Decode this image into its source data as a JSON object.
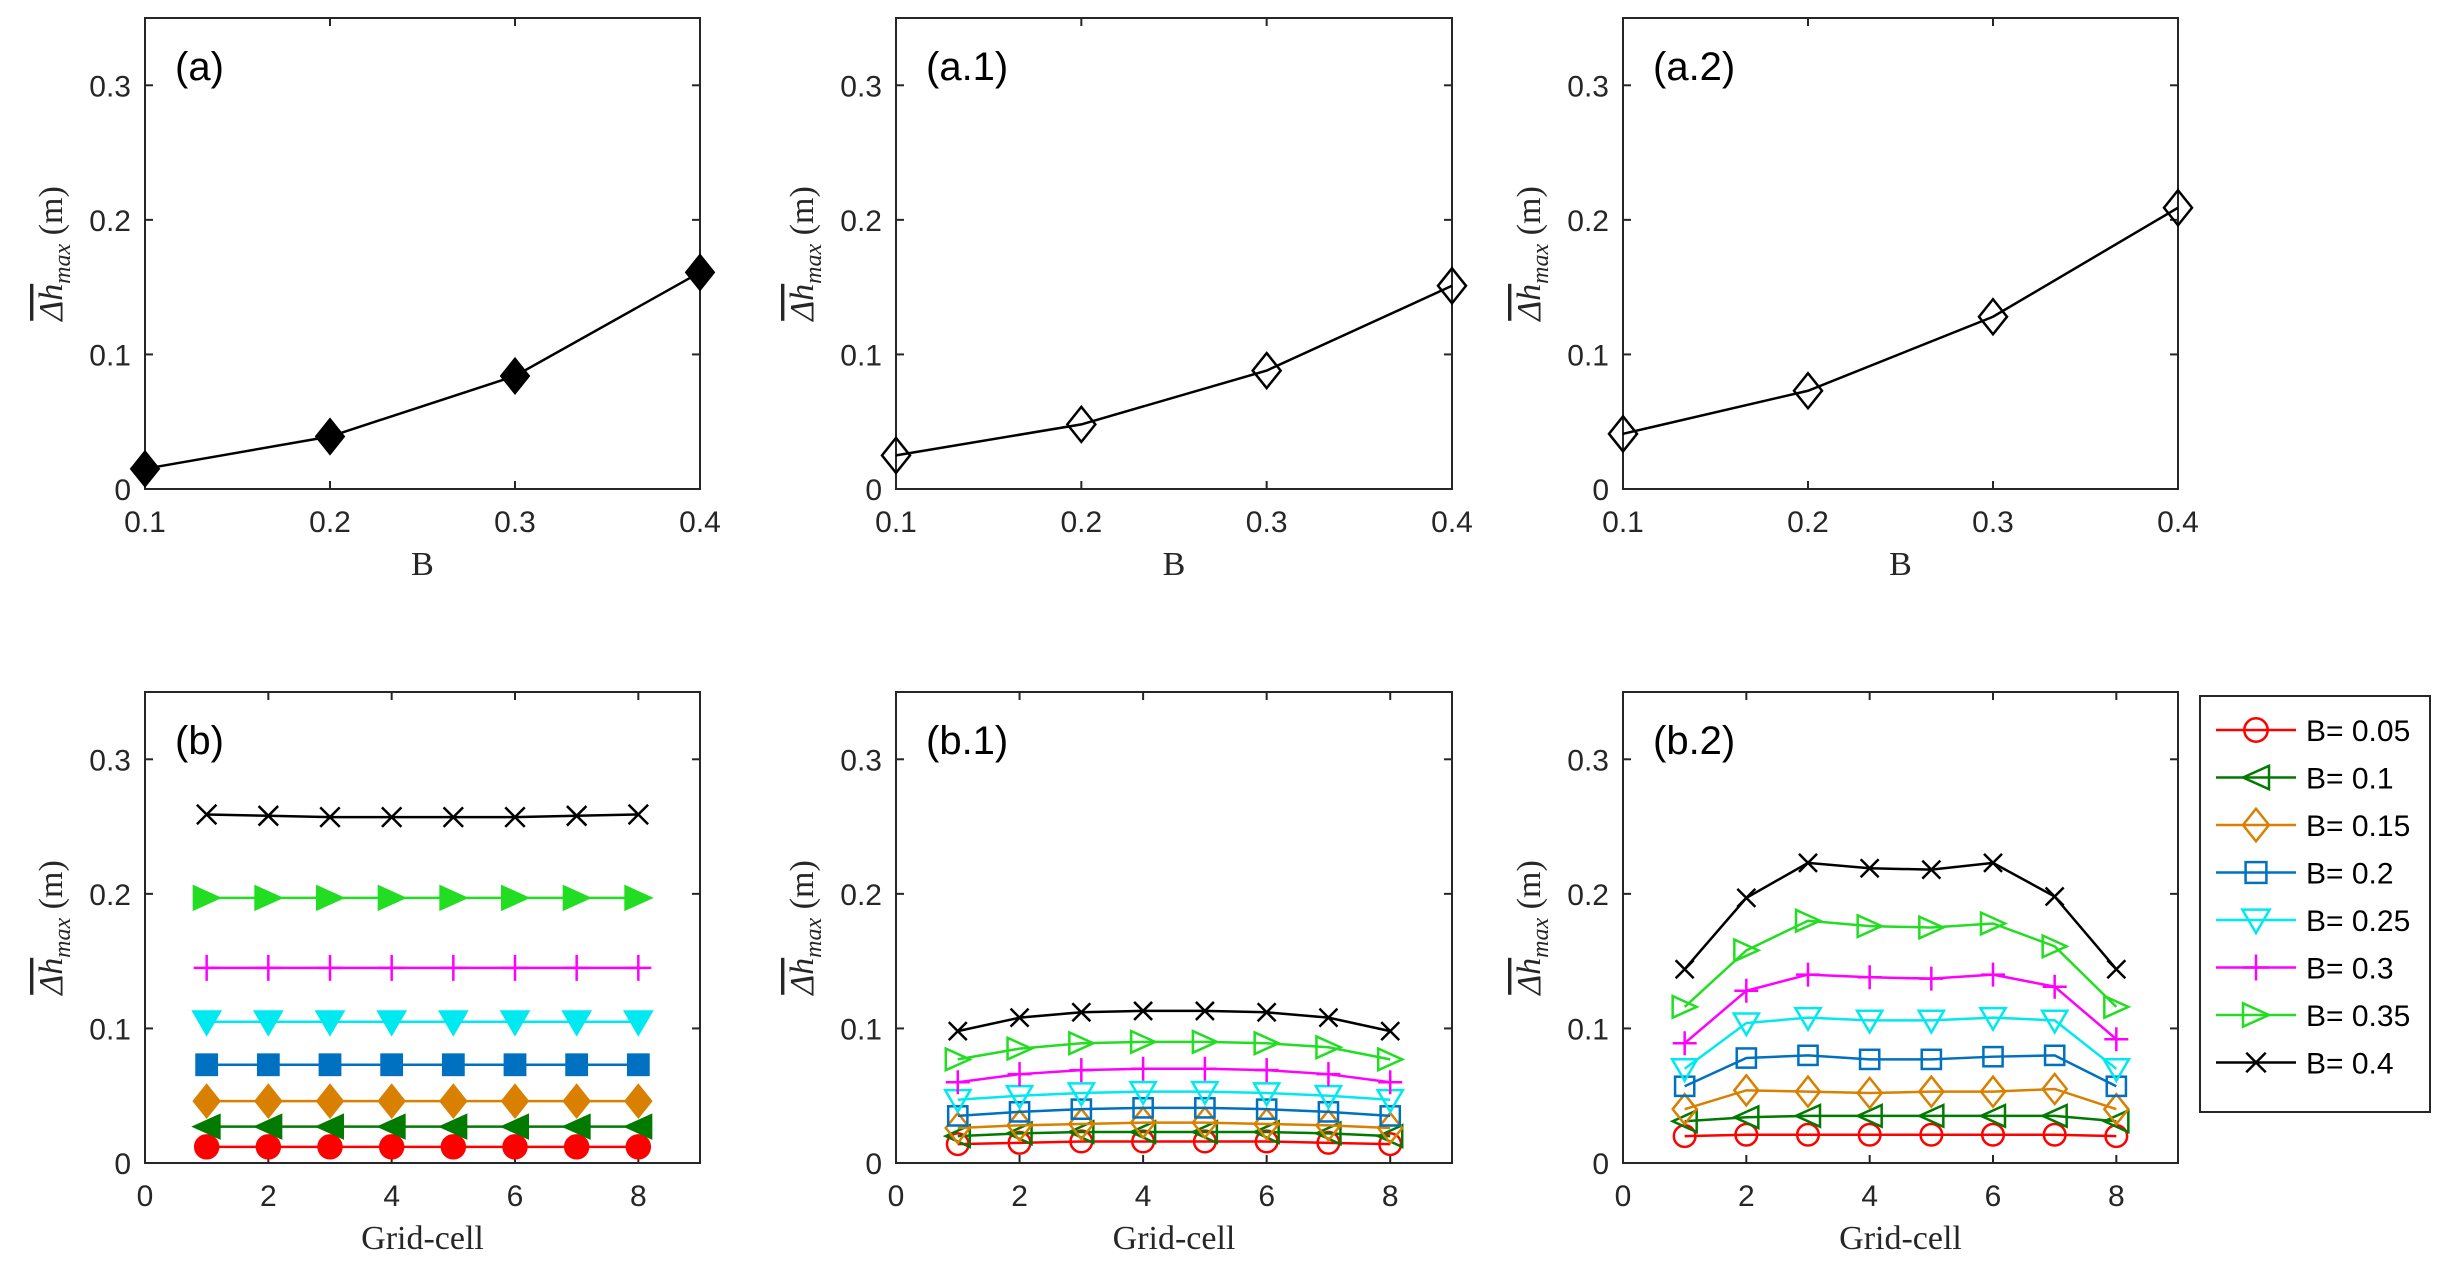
{
  "colors": {
    "series": [
      "#ff0000",
      "#007a00",
      "#d98000",
      "#0070c0",
      "#00e8f0",
      "#ff00ff",
      "#22dd22",
      "#000000"
    ],
    "line": "#000000"
  },
  "legend": {
    "entries": [
      "B= 0.05",
      "B= 0.1",
      "B= 0.15",
      "B= 0.2",
      "B= 0.25",
      "B= 0.3",
      "B= 0.35",
      "B= 0.4"
    ],
    "markers": [
      "circle",
      "triangle-left",
      "diamond",
      "square",
      "triangle-down",
      "plus",
      "triangle-right",
      "x"
    ],
    "placement": "right of panel (b.2)"
  },
  "chart_data": [
    {
      "panel": "(a)",
      "type": "line",
      "xlabel": "B",
      "ylabel": "Δh_max (m)",
      "xlim": [
        0.1,
        0.4
      ],
      "ylim": [
        0,
        0.35
      ],
      "xticks": [
        "0.1",
        "0.2",
        "0.3",
        "0.4"
      ],
      "yticks": [
        "0",
        "0.1",
        "0.2",
        "0.3"
      ],
      "marker": "diamond",
      "filled": true,
      "x": [
        0.1,
        0.2,
        0.3,
        0.4
      ],
      "y": [
        0.015,
        0.039,
        0.084,
        0.161
      ]
    },
    {
      "panel": "(a.1)",
      "type": "line",
      "xlabel": "B",
      "ylabel": "Δh_max (m)",
      "xlim": [
        0.1,
        0.4
      ],
      "ylim": [
        0,
        0.35
      ],
      "xticks": [
        "0.1",
        "0.2",
        "0.3",
        "0.4"
      ],
      "yticks": [
        "0",
        "0.1",
        "0.2",
        "0.3"
      ],
      "marker": "diamond",
      "filled": false,
      "x": [
        0.1,
        0.2,
        0.3,
        0.4
      ],
      "y": [
        0.025,
        0.048,
        0.088,
        0.151
      ]
    },
    {
      "panel": "(a.2)",
      "type": "line",
      "xlabel": "B",
      "ylabel": "Δh_max (m)",
      "xlim": [
        0.1,
        0.4
      ],
      "ylim": [
        0,
        0.35
      ],
      "xticks": [
        "0.1",
        "0.2",
        "0.3",
        "0.4"
      ],
      "yticks": [
        "0",
        "0.1",
        "0.2",
        "0.3"
      ],
      "marker": "diamond",
      "filled": false,
      "x": [
        0.1,
        0.2,
        0.3,
        0.4
      ],
      "y": [
        0.041,
        0.073,
        0.128,
        0.209
      ]
    },
    {
      "panel": "(b)",
      "type": "line",
      "xlabel": "Grid-cell",
      "ylabel": "Δh_max (m)",
      "xlim": [
        0,
        9
      ],
      "ylim": [
        0,
        0.35
      ],
      "xticks": [
        "0",
        "2",
        "4",
        "6",
        "8"
      ],
      "yticks": [
        "0",
        "0.1",
        "0.2",
        "0.3"
      ],
      "filled": true,
      "x": [
        1,
        2,
        3,
        4,
        5,
        6,
        7,
        8
      ],
      "series": [
        {
          "name": "B= 0.05",
          "values": [
            0.012,
            0.012,
            0.012,
            0.012,
            0.012,
            0.012,
            0.012,
            0.012
          ]
        },
        {
          "name": "B= 0.1",
          "values": [
            0.027,
            0.027,
            0.027,
            0.027,
            0.027,
            0.027,
            0.027,
            0.027
          ]
        },
        {
          "name": "B= 0.15",
          "values": [
            0.046,
            0.046,
            0.046,
            0.046,
            0.046,
            0.046,
            0.046,
            0.046
          ]
        },
        {
          "name": "B= 0.2",
          "values": [
            0.073,
            0.073,
            0.073,
            0.073,
            0.073,
            0.073,
            0.073,
            0.073
          ]
        },
        {
          "name": "B= 0.25",
          "values": [
            0.105,
            0.105,
            0.105,
            0.105,
            0.105,
            0.105,
            0.105,
            0.105
          ]
        },
        {
          "name": "B= 0.3",
          "values": [
            0.145,
            0.145,
            0.145,
            0.145,
            0.145,
            0.145,
            0.145,
            0.145
          ]
        },
        {
          "name": "B= 0.35",
          "values": [
            0.197,
            0.197,
            0.197,
            0.197,
            0.197,
            0.197,
            0.197,
            0.197
          ]
        },
        {
          "name": "B= 0.4",
          "values": [
            0.259,
            0.258,
            0.257,
            0.257,
            0.257,
            0.257,
            0.258,
            0.259
          ]
        }
      ]
    },
    {
      "panel": "(b.1)",
      "type": "line",
      "xlabel": "Grid-cell",
      "ylabel": "Δh_max (m)",
      "xlim": [
        0,
        9
      ],
      "ylim": [
        0,
        0.35
      ],
      "xticks": [
        "0",
        "2",
        "4",
        "6",
        "8"
      ],
      "yticks": [
        "0",
        "0.1",
        "0.2",
        "0.3"
      ],
      "filled": false,
      "x": [
        1,
        2,
        3,
        4,
        5,
        6,
        7,
        8
      ],
      "series": [
        {
          "name": "B= 0.05",
          "values": [
            0.014,
            0.015,
            0.016,
            0.016,
            0.016,
            0.016,
            0.015,
            0.014
          ]
        },
        {
          "name": "B= 0.1",
          "values": [
            0.02,
            0.022,
            0.023,
            0.023,
            0.023,
            0.023,
            0.022,
            0.02
          ]
        },
        {
          "name": "B= 0.15",
          "values": [
            0.026,
            0.028,
            0.029,
            0.03,
            0.03,
            0.029,
            0.028,
            0.026
          ]
        },
        {
          "name": "B= 0.2",
          "values": [
            0.035,
            0.038,
            0.04,
            0.041,
            0.041,
            0.04,
            0.038,
            0.035
          ]
        },
        {
          "name": "B= 0.25",
          "values": [
            0.047,
            0.05,
            0.052,
            0.053,
            0.053,
            0.052,
            0.05,
            0.047
          ]
        },
        {
          "name": "B= 0.3",
          "values": [
            0.06,
            0.066,
            0.069,
            0.07,
            0.07,
            0.069,
            0.066,
            0.06
          ]
        },
        {
          "name": "B= 0.35",
          "values": [
            0.077,
            0.085,
            0.089,
            0.09,
            0.09,
            0.089,
            0.086,
            0.077
          ]
        },
        {
          "name": "B= 0.4",
          "values": [
            0.098,
            0.108,
            0.112,
            0.113,
            0.113,
            0.112,
            0.108,
            0.098
          ]
        }
      ]
    },
    {
      "panel": "(b.2)",
      "type": "line",
      "xlabel": "Grid-cell",
      "ylabel": "Δh_max (m)",
      "xlim": [
        0,
        9
      ],
      "ylim": [
        0,
        0.35
      ],
      "xticks": [
        "0",
        "2",
        "4",
        "6",
        "8"
      ],
      "yticks": [
        "0",
        "0.1",
        "0.2",
        "0.3"
      ],
      "filled": false,
      "x": [
        1,
        2,
        3,
        4,
        5,
        6,
        7,
        8
      ],
      "series": [
        {
          "name": "B= 0.05",
          "values": [
            0.02,
            0.021,
            0.021,
            0.021,
            0.021,
            0.021,
            0.021,
            0.02
          ]
        },
        {
          "name": "B= 0.1",
          "values": [
            0.031,
            0.034,
            0.035,
            0.035,
            0.035,
            0.035,
            0.035,
            0.031
          ]
        },
        {
          "name": "B= 0.15",
          "values": [
            0.04,
            0.054,
            0.053,
            0.052,
            0.053,
            0.053,
            0.055,
            0.04
          ]
        },
        {
          "name": "B= 0.2",
          "values": [
            0.057,
            0.078,
            0.08,
            0.077,
            0.077,
            0.079,
            0.08,
            0.057
          ]
        },
        {
          "name": "B= 0.25",
          "values": [
            0.07,
            0.104,
            0.108,
            0.106,
            0.106,
            0.108,
            0.106,
            0.07
          ]
        },
        {
          "name": "B= 0.3",
          "values": [
            0.089,
            0.128,
            0.14,
            0.138,
            0.137,
            0.14,
            0.131,
            0.092
          ]
        },
        {
          "name": "B= 0.35",
          "values": [
            0.116,
            0.158,
            0.18,
            0.176,
            0.175,
            0.178,
            0.161,
            0.116
          ]
        },
        {
          "name": "B= 0.4",
          "values": [
            0.144,
            0.197,
            0.223,
            0.219,
            0.218,
            0.223,
            0.198,
            0.144
          ]
        }
      ]
    }
  ]
}
